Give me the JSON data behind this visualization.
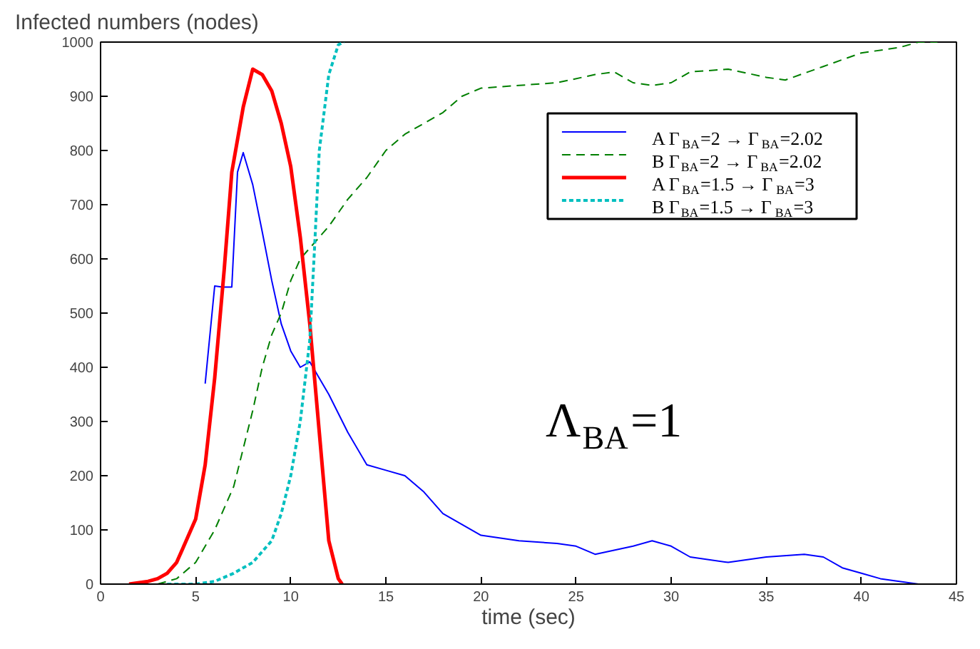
{
  "chart_data": {
    "type": "line",
    "xlabel": "time (sec)",
    "ylabel": "Infected numbers (nodes)",
    "xlim": [
      0,
      45
    ],
    "ylim": [
      0,
      1000
    ],
    "xticks": [
      0,
      5,
      10,
      15,
      20,
      25,
      30,
      35,
      40,
      45
    ],
    "yticks": [
      0,
      100,
      200,
      300,
      400,
      500,
      600,
      700,
      800,
      900,
      1000
    ],
    "grid": false,
    "legend": "top right",
    "marker": "none",
    "annotations": [
      "Λ$_{BA}$=1"
    ],
    "series": [
      {
        "name": "A Γ$_{BA}$=2 → Γ$_{BA}$=2.02",
        "color": "#0000ff",
        "line_style": "solid",
        "x": [
          5.5,
          6,
          6.4,
          6.9,
          7.2,
          7.5,
          8,
          8.5,
          9,
          9.5,
          10,
          10.5,
          11,
          11.5,
          12,
          13,
          14,
          15,
          16,
          17,
          18,
          19,
          20,
          22,
          24,
          25,
          26,
          28,
          29,
          30,
          31,
          33,
          35,
          37,
          38,
          39,
          40,
          41,
          42,
          43
        ],
        "values": [
          370,
          550,
          548,
          548,
          760,
          796,
          737,
          650,
          560,
          480,
          430,
          400,
          410,
          380,
          350,
          280,
          220,
          210,
          200,
          170,
          130,
          110,
          90,
          80,
          75,
          70,
          55,
          70,
          80,
          70,
          50,
          40,
          50,
          55,
          50,
          30,
          20,
          10,
          5,
          0
        ]
      },
      {
        "name": "B Γ$_{BA}$=2 → Γ$_{BA}$=2.02",
        "color": "#007f00",
        "line_style": "dashed",
        "x": [
          3,
          4,
          5,
          6,
          7,
          8,
          8.5,
          9,
          9.5,
          10,
          10.5,
          11,
          12,
          13,
          14,
          15,
          16,
          17,
          18,
          19,
          20,
          22,
          24,
          26,
          27,
          28,
          29,
          30,
          31,
          33,
          35,
          36,
          38,
          40,
          42,
          43,
          44
        ],
        "values": [
          0,
          10,
          40,
          100,
          180,
          320,
          400,
          460,
          500,
          560,
          600,
          620,
          660,
          710,
          750,
          800,
          830,
          850,
          870,
          900,
          915,
          920,
          925,
          940,
          945,
          925,
          920,
          925,
          945,
          950,
          935,
          930,
          955,
          980,
          990,
          1000,
          1000
        ]
      },
      {
        "name": "A Γ$_{BA}$=1.5 → Γ$_{BA}$=3",
        "color": "#ff0000",
        "line_style": "solid",
        "x": [
          1.5,
          2.5,
          3,
          3.5,
          4,
          4.5,
          5,
          5.5,
          6,
          6.5,
          6.9,
          7.5,
          8,
          8.5,
          9,
          9.5,
          10,
          10.5,
          11,
          11.5,
          12,
          12.5,
          12.7
        ],
        "values": [
          0,
          5,
          10,
          20,
          40,
          80,
          120,
          220,
          380,
          580,
          760,
          880,
          950,
          940,
          910,
          850,
          770,
          640,
          480,
          280,
          80,
          10,
          0
        ]
      },
      {
        "name": "B Γ$_{BA}$=1.5 → Γ$_{BA}$=3",
        "color": "#00bfbf",
        "line_style": "dotted",
        "x": [
          3.5,
          5,
          6,
          7,
          8,
          9,
          9.5,
          10,
          10.5,
          11,
          11.25,
          11.5,
          12,
          12.5,
          12.8
        ],
        "values": [
          0,
          0,
          5,
          20,
          40,
          80,
          130,
          200,
          300,
          450,
          620,
          800,
          940,
          995,
          1000
        ]
      }
    ]
  }
}
